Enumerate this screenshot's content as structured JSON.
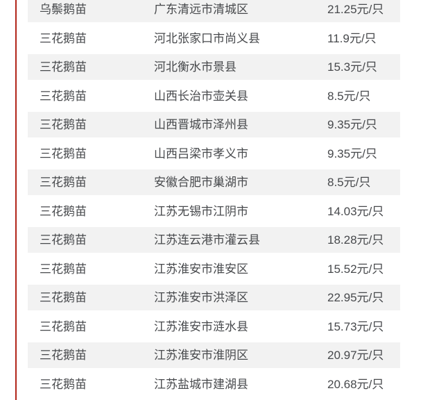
{
  "colors": {
    "accent_line": "#b2251a",
    "row_alt_background": "#f2f2f2",
    "row_background": "#ffffff",
    "text": "#47494c"
  },
  "table": {
    "unit": "元/只",
    "rows": [
      {
        "breed": "乌鬃鹅苗",
        "region": "广东清远市清城区",
        "price": "21.25元/只"
      },
      {
        "breed": "三花鹅苗",
        "region": "河北张家口市尚义县",
        "price": "11.9元/只"
      },
      {
        "breed": "三花鹅苗",
        "region": "河北衡水市景县",
        "price": "15.3元/只"
      },
      {
        "breed": "三花鹅苗",
        "region": "山西长治市壶关县",
        "price": "8.5元/只"
      },
      {
        "breed": "三花鹅苗",
        "region": "山西晋城市泽州县",
        "price": "9.35元/只"
      },
      {
        "breed": "三花鹅苗",
        "region": "山西吕梁市孝义市",
        "price": "9.35元/只"
      },
      {
        "breed": "三花鹅苗",
        "region": "安徽合肥市巢湖市",
        "price": "8.5元/只"
      },
      {
        "breed": "三花鹅苗",
        "region": "江苏无锡市江阴市",
        "price": "14.03元/只"
      },
      {
        "breed": "三花鹅苗",
        "region": "江苏连云港市灌云县",
        "price": "18.28元/只"
      },
      {
        "breed": "三花鹅苗",
        "region": "江苏淮安市淮安区",
        "price": "15.52元/只"
      },
      {
        "breed": "三花鹅苗",
        "region": "江苏淮安市洪泽区",
        "price": "22.95元/只"
      },
      {
        "breed": "三花鹅苗",
        "region": "江苏淮安市涟水县",
        "price": "15.73元/只"
      },
      {
        "breed": "三花鹅苗",
        "region": "江苏淮安市淮阴区",
        "price": "20.97元/只"
      },
      {
        "breed": "三花鹅苗",
        "region": "江苏盐城市建湖县",
        "price": "20.68元/只"
      }
    ]
  }
}
